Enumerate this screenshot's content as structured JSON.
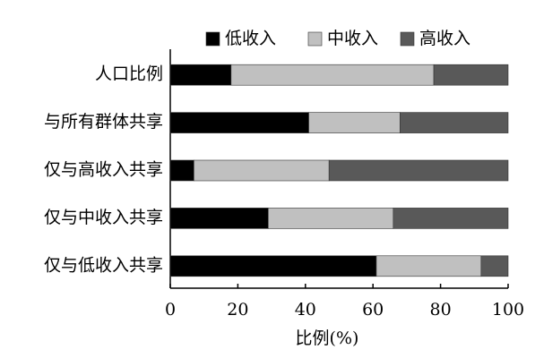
{
  "chart_data": {
    "type": "stacked_barh",
    "xlabel": "比例(%)",
    "categories": [
      "人口比例",
      "与所有群体共享",
      "仅与高收入共享",
      "仅与中收入共享",
      "仅与低收入共享"
    ],
    "series": [
      {
        "name": "低收入",
        "color": "#000000",
        "values": [
          18,
          41,
          7,
          29,
          61
        ]
      },
      {
        "name": "中收入",
        "color": "#c0c0c0",
        "values": [
          60,
          27,
          40,
          37,
          31
        ]
      },
      {
        "name": "高收入",
        "color": "#595959",
        "values": [
          22,
          32,
          53,
          34,
          8
        ]
      }
    ],
    "xlim": [
      0,
      100
    ],
    "xticks": [
      0,
      20,
      40,
      60,
      80,
      100
    ],
    "legend": "top"
  }
}
